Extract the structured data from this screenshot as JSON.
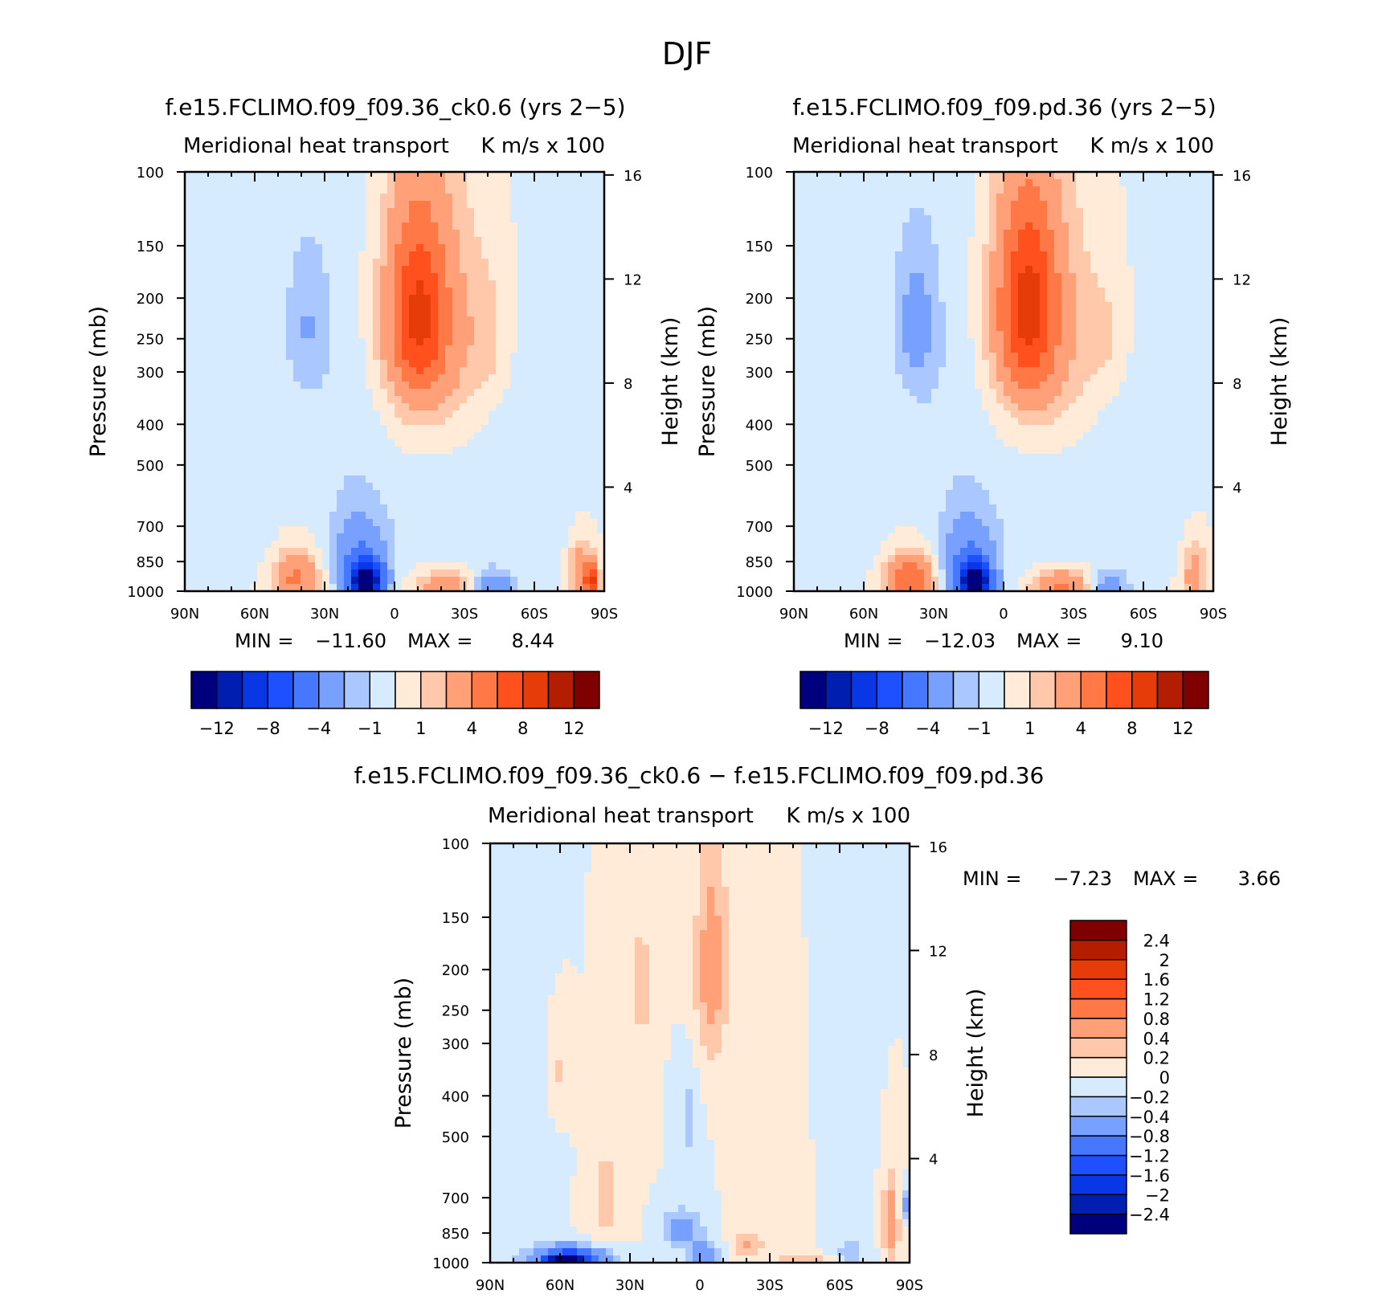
{
  "chart_data": {
    "type": "contour",
    "title": "DJF",
    "panels": [
      {
        "id": "run1",
        "title": "f.e15.FCLIMO.f09_f09.36_ck0.6 (yrs 2−5)",
        "subtitle_left": "Meridional heat transport",
        "subtitle_right": "K m/s x 100",
        "ylabel": "Pressure (mb)",
        "ylabel_right": "Height (km)",
        "xticks": [
          "90N",
          "60N",
          "30N",
          "0",
          "30S",
          "60S",
          "90S"
        ],
        "yticks": [
          {
            "p": 100,
            "label": "100"
          },
          {
            "p": 150,
            "label": "150"
          },
          {
            "p": 200,
            "label": "200"
          },
          {
            "p": 250,
            "label": "250"
          },
          {
            "p": 300,
            "label": "300"
          },
          {
            "p": 400,
            "label": "400"
          },
          {
            "p": 500,
            "label": "500"
          },
          {
            "p": 700,
            "label": "700"
          },
          {
            "p": 850,
            "label": "850"
          },
          {
            "p": 1000,
            "label": "1000"
          }
        ],
        "height_ticks": [
          {
            "km": 4,
            "label": "4"
          },
          {
            "km": 8,
            "label": "8"
          },
          {
            "km": 12,
            "label": "12"
          },
          {
            "km": 16,
            "label": "16"
          }
        ],
        "stats": {
          "min_label": "MIN  =",
          "min": "−11.60",
          "max_label": "MAX  =",
          "max": "8.44"
        },
        "colorbar": {
          "orientation": "horizontal",
          "colors": [
            "#00007f",
            "#001eb0",
            "#0a37e6",
            "#1e50ff",
            "#4678ff",
            "#78a0ff",
            "#aac8ff",
            "#d7ebff",
            "#ffebd7",
            "#ffc8aa",
            "#ffa078",
            "#ff7846",
            "#ff501e",
            "#e63c0a",
            "#b41e00",
            "#7f0000"
          ],
          "labels": [
            "−12",
            "−8",
            "−4",
            "−1",
            "1",
            "4",
            "8",
            "12"
          ]
        },
        "features": [
          {
            "lat": -10,
            "p": 220,
            "v": 7,
            "sx": 9,
            "sp": 80
          },
          {
            "lat": -18,
            "p": 250,
            "v": 2.2,
            "sx": 18,
            "sp": 120
          },
          {
            "lat": 38,
            "p": 230,
            "v": -1.8,
            "sx": 7,
            "sp": 70
          },
          {
            "lat": 20,
            "p": 400,
            "v": -0.8,
            "sx": 14,
            "sp": 260
          },
          {
            "lat": -40,
            "p": 250,
            "v": 0.9,
            "sx": 6,
            "sp": 60
          },
          {
            "lat": -22,
            "p": 700,
            "v": -0.7,
            "sx": 20,
            "sp": 200
          },
          {
            "lat": -55,
            "p": 500,
            "v": -0.8,
            "sx": 16,
            "sp": 250
          },
          {
            "lat": 12,
            "p": 950,
            "v": -11.5,
            "sx": 5,
            "sp": 70
          },
          {
            "lat": 15,
            "p": 850,
            "v": -4,
            "sx": 8,
            "sp": 140
          },
          {
            "lat": 42,
            "p": 930,
            "v": 4.5,
            "sx": 7,
            "sp": 90
          },
          {
            "lat": -22,
            "p": 980,
            "v": 3.5,
            "sx": 9,
            "sp": 70
          },
          {
            "lat": -42,
            "p": 985,
            "v": -4,
            "sx": 6,
            "sp": 60
          },
          {
            "lat": -80,
            "p": 920,
            "v": 4,
            "sx": 3.5,
            "sp": 110
          },
          {
            "lat": -85,
            "p": 950,
            "v": 8,
            "sx": 2,
            "sp": 60
          },
          {
            "lat": 60,
            "p": 700,
            "v": -0.6,
            "sx": 6,
            "sp": 150
          }
        ]
      },
      {
        "id": "run2",
        "title": "f.e15.FCLIMO.f09_f09.pd.36 (yrs 2−5)",
        "subtitle_left": "Meridional heat transport",
        "subtitle_right": "K m/s x 100",
        "ylabel": "Pressure (mb)",
        "ylabel_right": "Height (km)",
        "xticks": [
          "90N",
          "60N",
          "30N",
          "0",
          "30S",
          "60S",
          "90S"
        ],
        "yticks": [
          {
            "p": 100,
            "label": "100"
          },
          {
            "p": 150,
            "label": "150"
          },
          {
            "p": 200,
            "label": "200"
          },
          {
            "p": 250,
            "label": "250"
          },
          {
            "p": 300,
            "label": "300"
          },
          {
            "p": 400,
            "label": "400"
          },
          {
            "p": 500,
            "label": "500"
          },
          {
            "p": 700,
            "label": "700"
          },
          {
            "p": 850,
            "label": "850"
          },
          {
            "p": 1000,
            "label": "1000"
          }
        ],
        "height_ticks": [
          {
            "km": 4,
            "label": "4"
          },
          {
            "km": 8,
            "label": "8"
          },
          {
            "km": 12,
            "label": "12"
          },
          {
            "km": 16,
            "label": "16"
          }
        ],
        "stats": {
          "min_label": "MIN  =",
          "min": "−12.03",
          "max_label": "MAX  =",
          "max": "9.10"
        },
        "colorbar": {
          "orientation": "horizontal",
          "colors": [
            "#00007f",
            "#001eb0",
            "#0a37e6",
            "#1e50ff",
            "#4678ff",
            "#78a0ff",
            "#aac8ff",
            "#d7ebff",
            "#ffebd7",
            "#ffc8aa",
            "#ffa078",
            "#ff7846",
            "#ff501e",
            "#e63c0a",
            "#b41e00",
            "#7f0000"
          ],
          "labels": [
            "−12",
            "−8",
            "−4",
            "−1",
            "1",
            "4",
            "8",
            "12"
          ]
        },
        "features": [
          {
            "lat": -10,
            "p": 210,
            "v": 7.5,
            "sx": 9,
            "sp": 80
          },
          {
            "lat": -18,
            "p": 250,
            "v": 2.2,
            "sx": 18,
            "sp": 120
          },
          {
            "lat": 38,
            "p": 230,
            "v": -2.4,
            "sx": 7,
            "sp": 75
          },
          {
            "lat": 20,
            "p": 400,
            "v": -0.8,
            "sx": 14,
            "sp": 260
          },
          {
            "lat": -45,
            "p": 250,
            "v": 0.9,
            "sx": 6,
            "sp": 60
          },
          {
            "lat": -20,
            "p": 700,
            "v": -0.7,
            "sx": 20,
            "sp": 200
          },
          {
            "lat": -55,
            "p": 500,
            "v": -0.8,
            "sx": 16,
            "sp": 250
          },
          {
            "lat": 12,
            "p": 960,
            "v": -12,
            "sx": 5,
            "sp": 70
          },
          {
            "lat": 15,
            "p": 850,
            "v": -4,
            "sx": 8,
            "sp": 140
          },
          {
            "lat": 40,
            "p": 940,
            "v": 6,
            "sx": 7,
            "sp": 90
          },
          {
            "lat": -25,
            "p": 980,
            "v": 4.5,
            "sx": 9,
            "sp": 70
          },
          {
            "lat": -45,
            "p": 985,
            "v": -3,
            "sx": 6,
            "sp": 60
          },
          {
            "lat": -82,
            "p": 920,
            "v": 3,
            "sx": 3.5,
            "sp": 110
          },
          {
            "lat": 60,
            "p": 700,
            "v": -0.6,
            "sx": 6,
            "sp": 150
          }
        ]
      },
      {
        "id": "diff",
        "title": "f.e15.FCLIMO.f09_f09.36_ck0.6 − f.e15.FCLIMO.f09_f09.pd.36",
        "subtitle_left": "Meridional heat transport",
        "subtitle_right": "K m/s x 100",
        "ylabel": "Pressure (mb)",
        "ylabel_right": "Height (km)",
        "xticks": [
          "90N",
          "60N",
          "30N",
          "0",
          "30S",
          "60S",
          "90S"
        ],
        "yticks": [
          {
            "p": 100,
            "label": "100"
          },
          {
            "p": 150,
            "label": "150"
          },
          {
            "p": 200,
            "label": "200"
          },
          {
            "p": 250,
            "label": "250"
          },
          {
            "p": 300,
            "label": "300"
          },
          {
            "p": 400,
            "label": "400"
          },
          {
            "p": 500,
            "label": "500"
          },
          {
            "p": 700,
            "label": "700"
          },
          {
            "p": 850,
            "label": "850"
          },
          {
            "p": 1000,
            "label": "1000"
          }
        ],
        "height_ticks": [
          {
            "km": 4,
            "label": "4"
          },
          {
            "km": 8,
            "label": "8"
          },
          {
            "km": 12,
            "label": "12"
          },
          {
            "km": 16,
            "label": "16"
          }
        ],
        "stats": {
          "min_label": "MIN  =",
          "min": "−7.23",
          "max_label": "MAX  =",
          "max": "3.66"
        },
        "colorbar": {
          "orientation": "vertical",
          "colors": [
            "#00007f",
            "#001eb0",
            "#0a37e6",
            "#1e50ff",
            "#4678ff",
            "#78a0ff",
            "#aac8ff",
            "#d7ebff",
            "#ffebd7",
            "#ffc8aa",
            "#ffa078",
            "#ff7846",
            "#ff501e",
            "#e63c0a",
            "#b41e00",
            "#7f0000"
          ],
          "labels": [
            "−2.4",
            "−2",
            "−1.6",
            "−1.2",
            "−0.8",
            "−0.4",
            "−0.2",
            "0",
            "0.2",
            "0.4",
            "0.8",
            "1.2",
            "1.6",
            "2",
            "2.4"
          ]
        },
        "features": [
          {
            "lat": -5,
            "p": 200,
            "v": 0.55,
            "sx": 5,
            "sp": 90
          },
          {
            "lat": 25,
            "p": 220,
            "v": 0.3,
            "sx": 4,
            "sp": 60
          },
          {
            "lat": 60,
            "p": 350,
            "v": 0.25,
            "sx": 4,
            "sp": 70
          },
          {
            "lat": 75,
            "p": 500,
            "v": -0.12,
            "sx": 10,
            "sp": 300
          },
          {
            "lat": 5,
            "p": 450,
            "v": -0.3,
            "sx": 3,
            "sp": 80
          },
          {
            "lat": 40,
            "p": 700,
            "v": 0.25,
            "sx": 6,
            "sp": 200
          },
          {
            "lat": -35,
            "p": 600,
            "v": 0.15,
            "sx": 8,
            "sp": 250
          },
          {
            "lat": -60,
            "p": 400,
            "v": -0.12,
            "sx": 8,
            "sp": 300
          },
          {
            "lat": 8,
            "p": 830,
            "v": -0.6,
            "sx": 6,
            "sp": 60
          },
          {
            "lat": -2,
            "p": 950,
            "v": -0.6,
            "sx": 5,
            "sp": 50
          },
          {
            "lat": 55,
            "p": 980,
            "v": -1.3,
            "sx": 12,
            "sp": 50
          },
          {
            "lat": 58,
            "p": 995,
            "v": -3,
            "sx": 5,
            "sp": 25
          },
          {
            "lat": -20,
            "p": 910,
            "v": 0.45,
            "sx": 5,
            "sp": 50
          },
          {
            "lat": -45,
            "p": 995,
            "v": 0.35,
            "sx": 8,
            "sp": 30
          },
          {
            "lat": -65,
            "p": 940,
            "v": -0.3,
            "sx": 5,
            "sp": 50
          },
          {
            "lat": -82,
            "p": 800,
            "v": 0.55,
            "sx": 2.5,
            "sp": 150
          },
          {
            "lat": -88,
            "p": 720,
            "v": -0.6,
            "sx": 1.5,
            "sp": 40
          }
        ]
      }
    ]
  }
}
